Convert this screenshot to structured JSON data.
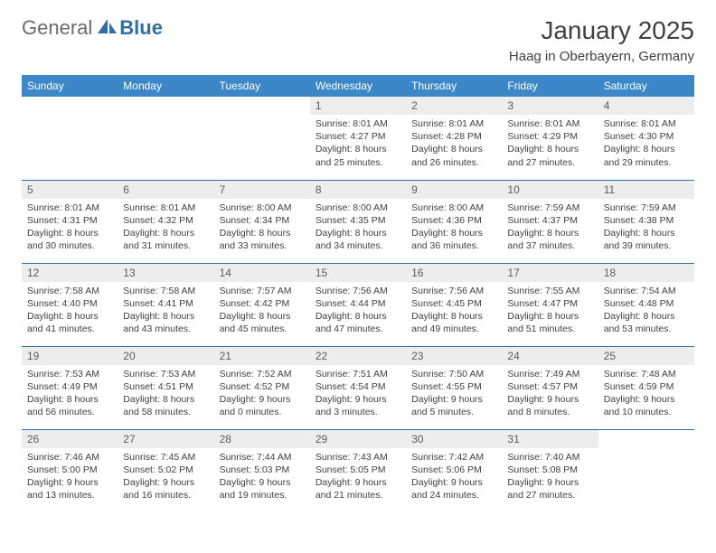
{
  "brand": {
    "part1": "General",
    "part2": "Blue"
  },
  "title": "January 2025",
  "location": "Haag in Oberbayern, Germany",
  "colors": {
    "header_bg": "#3b87c8",
    "rule": "#2f6fa8",
    "daynum_bg": "#ededed",
    "text": "#404040"
  },
  "typography": {
    "title_fontsize": 28,
    "location_fontsize": 15,
    "header_fontsize": 12,
    "body_fontsize": 10.5
  },
  "weekdays": [
    "Sunday",
    "Monday",
    "Tuesday",
    "Wednesday",
    "Thursday",
    "Friday",
    "Saturday"
  ],
  "weeks": [
    [
      null,
      null,
      null,
      {
        "n": "1",
        "sunrise": "8:01 AM",
        "sunset": "4:27 PM",
        "dl1": "8 hours",
        "dl2": "25 minutes"
      },
      {
        "n": "2",
        "sunrise": "8:01 AM",
        "sunset": "4:28 PM",
        "dl1": "8 hours",
        "dl2": "26 minutes"
      },
      {
        "n": "3",
        "sunrise": "8:01 AM",
        "sunset": "4:29 PM",
        "dl1": "8 hours",
        "dl2": "27 minutes"
      },
      {
        "n": "4",
        "sunrise": "8:01 AM",
        "sunset": "4:30 PM",
        "dl1": "8 hours",
        "dl2": "29 minutes"
      }
    ],
    [
      {
        "n": "5",
        "sunrise": "8:01 AM",
        "sunset": "4:31 PM",
        "dl1": "8 hours",
        "dl2": "30 minutes"
      },
      {
        "n": "6",
        "sunrise": "8:01 AM",
        "sunset": "4:32 PM",
        "dl1": "8 hours",
        "dl2": "31 minutes"
      },
      {
        "n": "7",
        "sunrise": "8:00 AM",
        "sunset": "4:34 PM",
        "dl1": "8 hours",
        "dl2": "33 minutes"
      },
      {
        "n": "8",
        "sunrise": "8:00 AM",
        "sunset": "4:35 PM",
        "dl1": "8 hours",
        "dl2": "34 minutes"
      },
      {
        "n": "9",
        "sunrise": "8:00 AM",
        "sunset": "4:36 PM",
        "dl1": "8 hours",
        "dl2": "36 minutes"
      },
      {
        "n": "10",
        "sunrise": "7:59 AM",
        "sunset": "4:37 PM",
        "dl1": "8 hours",
        "dl2": "37 minutes"
      },
      {
        "n": "11",
        "sunrise": "7:59 AM",
        "sunset": "4:38 PM",
        "dl1": "8 hours",
        "dl2": "39 minutes"
      }
    ],
    [
      {
        "n": "12",
        "sunrise": "7:58 AM",
        "sunset": "4:40 PM",
        "dl1": "8 hours",
        "dl2": "41 minutes"
      },
      {
        "n": "13",
        "sunrise": "7:58 AM",
        "sunset": "4:41 PM",
        "dl1": "8 hours",
        "dl2": "43 minutes"
      },
      {
        "n": "14",
        "sunrise": "7:57 AM",
        "sunset": "4:42 PM",
        "dl1": "8 hours",
        "dl2": "45 minutes"
      },
      {
        "n": "15",
        "sunrise": "7:56 AM",
        "sunset": "4:44 PM",
        "dl1": "8 hours",
        "dl2": "47 minutes"
      },
      {
        "n": "16",
        "sunrise": "7:56 AM",
        "sunset": "4:45 PM",
        "dl1": "8 hours",
        "dl2": "49 minutes"
      },
      {
        "n": "17",
        "sunrise": "7:55 AM",
        "sunset": "4:47 PM",
        "dl1": "8 hours",
        "dl2": "51 minutes"
      },
      {
        "n": "18",
        "sunrise": "7:54 AM",
        "sunset": "4:48 PM",
        "dl1": "8 hours",
        "dl2": "53 minutes"
      }
    ],
    [
      {
        "n": "19",
        "sunrise": "7:53 AM",
        "sunset": "4:49 PM",
        "dl1": "8 hours",
        "dl2": "56 minutes"
      },
      {
        "n": "20",
        "sunrise": "7:53 AM",
        "sunset": "4:51 PM",
        "dl1": "8 hours",
        "dl2": "58 minutes"
      },
      {
        "n": "21",
        "sunrise": "7:52 AM",
        "sunset": "4:52 PM",
        "dl1": "9 hours",
        "dl2": "0 minutes"
      },
      {
        "n": "22",
        "sunrise": "7:51 AM",
        "sunset": "4:54 PM",
        "dl1": "9 hours",
        "dl2": "3 minutes"
      },
      {
        "n": "23",
        "sunrise": "7:50 AM",
        "sunset": "4:55 PM",
        "dl1": "9 hours",
        "dl2": "5 minutes"
      },
      {
        "n": "24",
        "sunrise": "7:49 AM",
        "sunset": "4:57 PM",
        "dl1": "9 hours",
        "dl2": "8 minutes"
      },
      {
        "n": "25",
        "sunrise": "7:48 AM",
        "sunset": "4:59 PM",
        "dl1": "9 hours",
        "dl2": "10 minutes"
      }
    ],
    [
      {
        "n": "26",
        "sunrise": "7:46 AM",
        "sunset": "5:00 PM",
        "dl1": "9 hours",
        "dl2": "13 minutes"
      },
      {
        "n": "27",
        "sunrise": "7:45 AM",
        "sunset": "5:02 PM",
        "dl1": "9 hours",
        "dl2": "16 minutes"
      },
      {
        "n": "28",
        "sunrise": "7:44 AM",
        "sunset": "5:03 PM",
        "dl1": "9 hours",
        "dl2": "19 minutes"
      },
      {
        "n": "29",
        "sunrise": "7:43 AM",
        "sunset": "5:05 PM",
        "dl1": "9 hours",
        "dl2": "21 minutes"
      },
      {
        "n": "30",
        "sunrise": "7:42 AM",
        "sunset": "5:06 PM",
        "dl1": "9 hours",
        "dl2": "24 minutes"
      },
      {
        "n": "31",
        "sunrise": "7:40 AM",
        "sunset": "5:08 PM",
        "dl1": "9 hours",
        "dl2": "27 minutes"
      },
      null
    ]
  ],
  "labels": {
    "sunrise": "Sunrise:",
    "sunset": "Sunset:",
    "daylight": "Daylight:",
    "and": "and"
  }
}
